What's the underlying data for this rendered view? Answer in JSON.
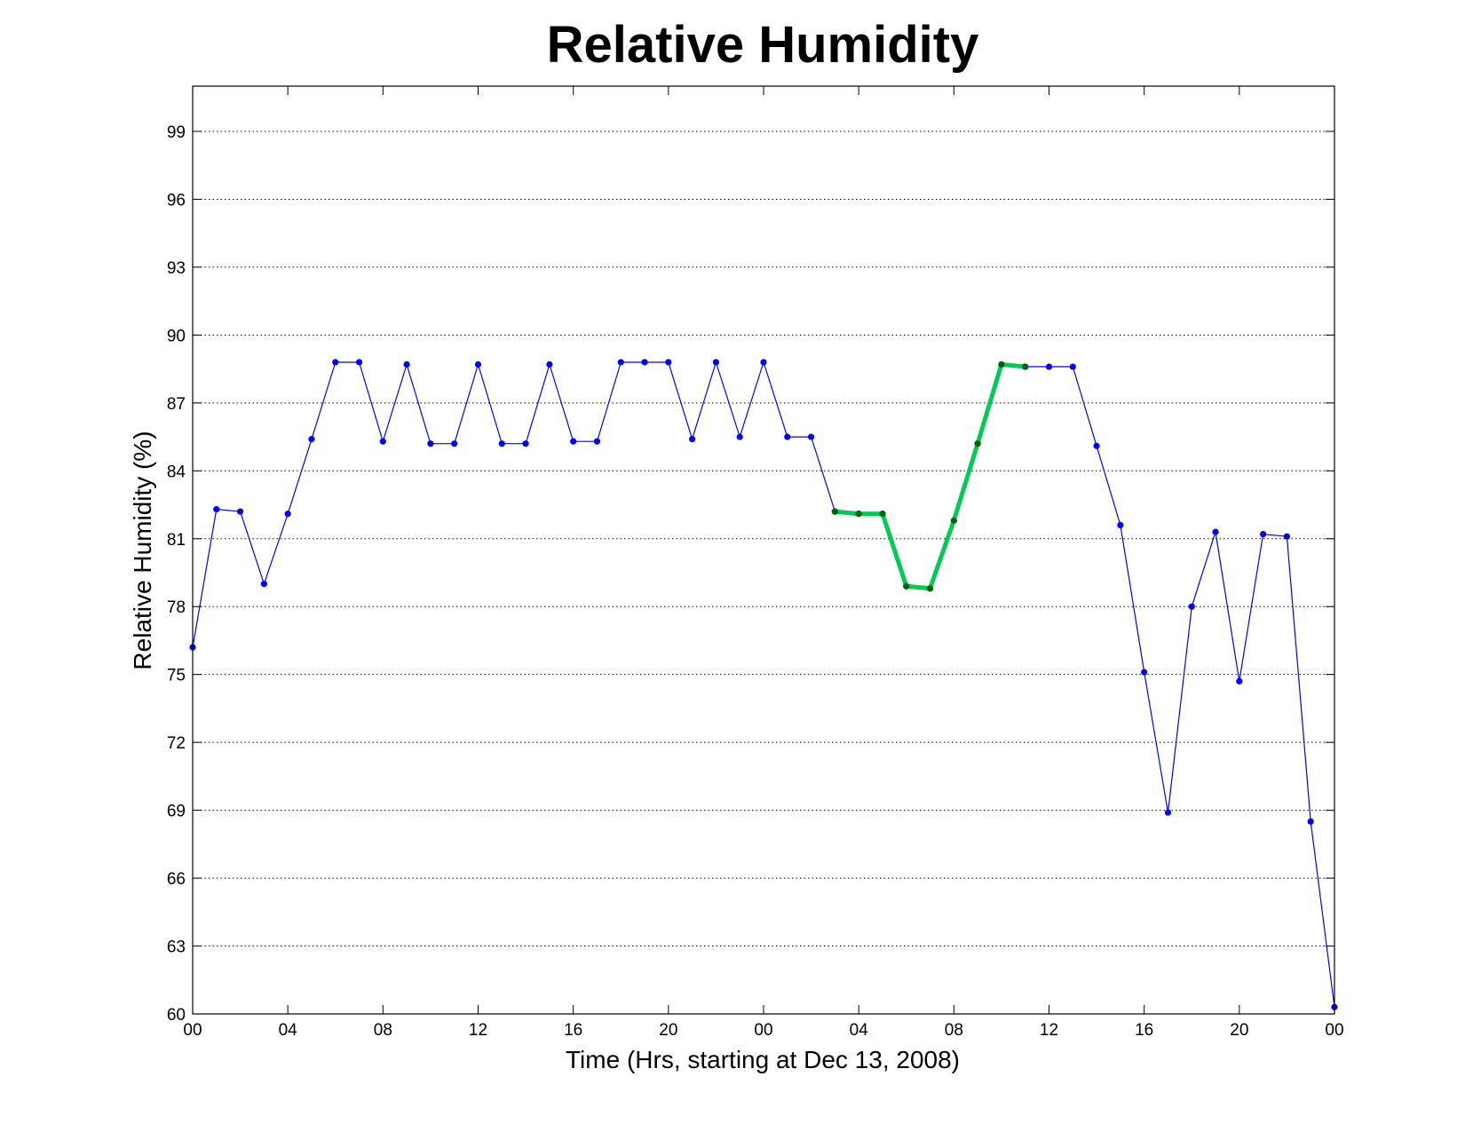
{
  "chart_data": {
    "type": "line",
    "title": "Relative Humidity",
    "xlabel": "Time (Hrs, starting at Dec 13, 2008)",
    "ylabel": "Relative Humidity (%)",
    "xlim": [
      0,
      48
    ],
    "ylim": [
      60,
      101
    ],
    "grid": "horizontal dotted",
    "x_ticks": [
      0,
      4,
      8,
      12,
      16,
      20,
      24,
      28,
      32,
      36,
      40,
      44,
      48
    ],
    "x_tick_labels": [
      "00",
      "04",
      "08",
      "12",
      "16",
      "20",
      "00",
      "04",
      "08",
      "12",
      "16",
      "20",
      "00"
    ],
    "y_ticks": [
      60,
      63,
      66,
      69,
      72,
      75,
      78,
      81,
      84,
      87,
      90,
      93,
      96,
      99
    ],
    "y_tick_labels": [
      "60",
      "63",
      "66",
      "69",
      "72",
      "75",
      "78",
      "81",
      "84",
      "87",
      "90",
      "93",
      "96",
      "99"
    ],
    "series": [
      {
        "color": "#0000ff",
        "x": [
          0,
          1,
          2,
          3,
          4,
          5,
          6,
          7,
          8,
          9,
          10,
          11,
          12,
          13,
          14,
          15,
          16,
          17,
          18,
          19,
          20,
          21,
          22,
          23,
          24,
          25,
          26,
          27,
          28,
          29,
          30,
          31,
          32,
          33,
          34,
          35,
          36,
          37,
          38,
          39,
          40,
          41,
          42,
          43,
          44,
          45,
          46,
          47,
          48
        ],
        "y": [
          76.2,
          82.3,
          82.2,
          79.0,
          82.1,
          85.4,
          88.8,
          88.8,
          85.3,
          88.7,
          85.2,
          85.2,
          88.7,
          85.2,
          85.2,
          88.7,
          85.3,
          85.3,
          88.8,
          88.8,
          88.8,
          85.4,
          88.8,
          85.5,
          88.8,
          85.5,
          85.5,
          82.2,
          82.1,
          82.1,
          78.9,
          78.8,
          81.8,
          85.2,
          88.7,
          88.6,
          88.6,
          88.6,
          85.1,
          81.6,
          75.1,
          68.9,
          78.0,
          81.3,
          74.7,
          81.2,
          81.1,
          68.5,
          60.3
        ]
      },
      {
        "color": "#00cc55",
        "marker_color": "#006600",
        "x": [
          27,
          28,
          29,
          30,
          31,
          32,
          33,
          34,
          35
        ],
        "y": [
          82.2,
          82.1,
          82.1,
          78.9,
          78.8,
          81.8,
          85.2,
          88.7,
          88.6
        ]
      }
    ]
  }
}
